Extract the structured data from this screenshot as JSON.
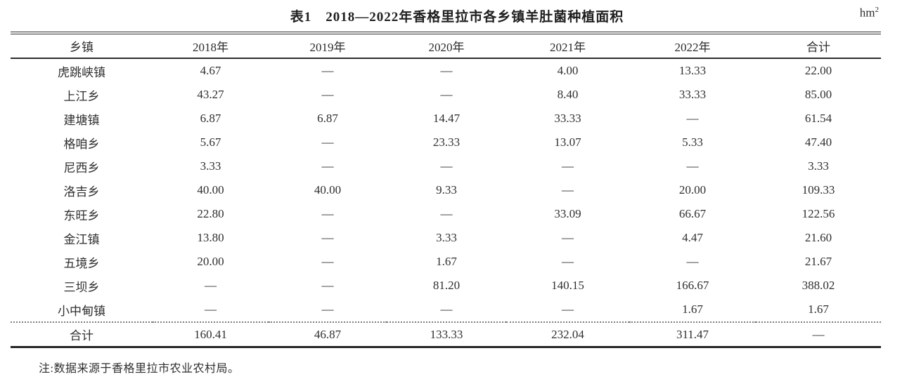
{
  "page": {
    "background": "#ffffff",
    "text_color": "#2b2b2b",
    "rule_color": "#2e2e2e"
  },
  "table": {
    "title": "表1　2018—2022年香格里拉市各乡镇羊肚菌种植面积",
    "unit_base": "hm",
    "unit_exponent": "2",
    "columns": [
      "乡镇",
      "2018年",
      "2019年",
      "2020年",
      "2021年",
      "2022年",
      "合计"
    ],
    "rows": [
      {
        "name": "虎跳峡镇",
        "values": [
          "4.67",
          "—",
          "—",
          "4.00",
          "13.33",
          "22.00"
        ]
      },
      {
        "name": "上江乡",
        "values": [
          "43.27",
          "—",
          "—",
          "8.40",
          "33.33",
          "85.00"
        ]
      },
      {
        "name": "建塘镇",
        "values": [
          "6.87",
          "6.87",
          "14.47",
          "33.33",
          "—",
          "61.54"
        ]
      },
      {
        "name": "格咱乡",
        "values": [
          "5.67",
          "—",
          "23.33",
          "13.07",
          "5.33",
          "47.40"
        ]
      },
      {
        "name": "尼西乡",
        "values": [
          "3.33",
          "—",
          "—",
          "—",
          "—",
          "3.33"
        ]
      },
      {
        "name": "洛吉乡",
        "values": [
          "40.00",
          "40.00",
          "9.33",
          "—",
          "20.00",
          "109.33"
        ]
      },
      {
        "name": "东旺乡",
        "values": [
          "22.80",
          "—",
          "—",
          "33.09",
          "66.67",
          "122.56"
        ]
      },
      {
        "name": "金江镇",
        "values": [
          "13.80",
          "—",
          "3.33",
          "—",
          "4.47",
          "21.60"
        ]
      },
      {
        "name": "五境乡",
        "values": [
          "20.00",
          "—",
          "1.67",
          "—",
          "—",
          "21.67"
        ]
      },
      {
        "name": "三坝乡",
        "values": [
          "—",
          "—",
          "81.20",
          "140.15",
          "166.67",
          "388.02"
        ]
      },
      {
        "name": "小中甸镇",
        "values": [
          "—",
          "—",
          "—",
          "—",
          "1.67",
          "1.67"
        ]
      }
    ],
    "total_row": {
      "name": "合计",
      "values": [
        "160.41",
        "46.87",
        "133.33",
        "232.04",
        "311.47",
        "—"
      ]
    },
    "note": "注:数据来源于香格里拉市农业农村局。"
  }
}
